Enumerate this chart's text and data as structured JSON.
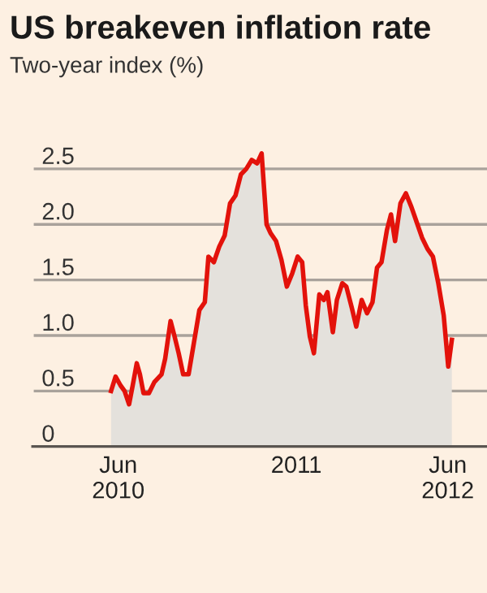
{
  "chart_data": {
    "type": "area",
    "title": "US breakeven inflation rate",
    "subtitle": "Two-year index (%)",
    "x": [
      "2010-05-16",
      "2010-05-26",
      "2010-06-06",
      "2010-06-15",
      "2010-06-25",
      "2010-07-03",
      "2010-07-12",
      "2010-07-19",
      "2010-07-27",
      "2010-08-08",
      "2010-08-20",
      "2010-09-05",
      "2010-09-13",
      "2010-09-25",
      "2010-10-04",
      "2010-10-13",
      "2010-10-23",
      "2010-11-04",
      "2010-11-16",
      "2010-11-28",
      "2010-12-10",
      "2010-12-18",
      "2010-12-30",
      "2011-01-11",
      "2011-01-23",
      "2011-02-04",
      "2011-02-16",
      "2011-02-28",
      "2011-03-12",
      "2011-03-24",
      "2011-04-05",
      "2011-04-15",
      "2011-04-26",
      "2011-05-05",
      "2011-05-17",
      "2011-05-29",
      "2011-06-10",
      "2011-06-22",
      "2011-07-04",
      "2011-07-14",
      "2011-07-22",
      "2011-07-31",
      "2011-08-09",
      "2011-08-21",
      "2011-08-31",
      "2011-09-08",
      "2011-09-20",
      "2011-09-29",
      "2011-10-11",
      "2011-10-20",
      "2011-11-01",
      "2011-11-11",
      "2011-11-23",
      "2011-12-05",
      "2011-12-17",
      "2011-12-27",
      "2012-01-06",
      "2012-01-18",
      "2012-01-27",
      "2012-02-05",
      "2012-02-17",
      "2012-02-29",
      "2012-03-12",
      "2012-03-24",
      "2012-04-05",
      "2012-04-17",
      "2012-04-29",
      "2012-05-11",
      "2012-05-23",
      "2012-06-02",
      "2012-06-10"
    ],
    "series": [
      {
        "color": "#e3120b",
        "values": [
          0.5,
          0.63,
          0.55,
          0.5,
          0.38,
          0.55,
          0.75,
          0.65,
          0.48,
          0.48,
          0.58,
          0.65,
          0.79,
          1.13,
          0.99,
          0.84,
          0.65,
          0.65,
          0.94,
          1.23,
          1.3,
          1.71,
          1.66,
          1.8,
          1.9,
          2.19,
          2.26,
          2.45,
          2.5,
          2.58,
          2.55,
          2.64,
          2.0,
          1.92,
          1.85,
          1.68,
          1.44,
          1.56,
          1.71,
          1.66,
          1.27,
          0.99,
          0.84,
          1.37,
          1.32,
          1.39,
          1.03,
          1.32,
          1.47,
          1.44,
          1.25,
          1.08,
          1.32,
          1.2,
          1.3,
          1.61,
          1.66,
          1.95,
          2.09,
          1.85,
          2.19,
          2.28,
          2.16,
          2.02,
          1.88,
          1.78,
          1.71,
          1.47,
          1.18,
          0.72,
          0.96
        ]
      }
    ],
    "xlim": [
      "2009-11-23",
      "2012-08-27"
    ],
    "xticks": [
      {
        "value": "2010-06-01",
        "label": "Jun\n2010"
      },
      {
        "value": "2010-07-01",
        "label": null
      },
      {
        "value": "2010-08-01",
        "label": null
      },
      {
        "value": "2010-09-01",
        "label": null
      },
      {
        "value": "2010-10-01",
        "label": null
      },
      {
        "value": "2010-11-01",
        "label": null
      },
      {
        "value": "2010-12-01",
        "label": null
      },
      {
        "value": "2011-01-01",
        "label": null
      },
      {
        "value": "2011-02-01",
        "label": null
      },
      {
        "value": "2011-03-01",
        "label": null
      },
      {
        "value": "2011-04-01",
        "label": null
      },
      {
        "value": "2011-05-01",
        "label": null
      },
      {
        "value": "2011-06-01",
        "label": null
      },
      {
        "value": "2011-07-01",
        "label": "2011"
      },
      {
        "value": "2011-08-01",
        "label": null
      },
      {
        "value": "2011-09-01",
        "label": null
      },
      {
        "value": "2011-10-01",
        "label": null
      },
      {
        "value": "2011-11-01",
        "label": null
      },
      {
        "value": "2011-12-01",
        "label": null
      },
      {
        "value": "2012-01-01",
        "label": null
      },
      {
        "value": "2012-02-01",
        "label": null
      },
      {
        "value": "2012-03-01",
        "label": null
      },
      {
        "value": "2012-04-01",
        "label": null
      },
      {
        "value": "2012-05-01",
        "label": null
      },
      {
        "value": "2012-06-01",
        "label": "Jun\n2012"
      }
    ],
    "ylim": [
      0,
      2.75
    ],
    "yticks": [
      0,
      0.5,
      {
        "value": 1,
        "label": "1.0"
      },
      1.5,
      {
        "value": 2,
        "label": "2.0"
      },
      2.5
    ],
    "grid": "y",
    "legend": false
  }
}
